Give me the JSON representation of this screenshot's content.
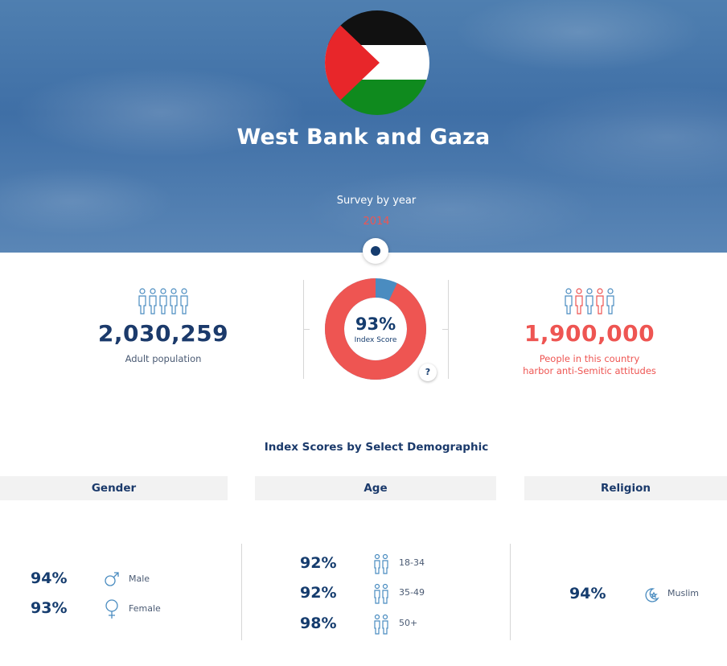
{
  "hero": {
    "country": "West Bank and Gaza",
    "survey_label": "Survey by year",
    "selected_year": "2014"
  },
  "stats": {
    "adult_population": {
      "value": "2,030,259",
      "label": "Adult population"
    },
    "index": {
      "value": "93%",
      "label": "Index Score",
      "fraction": 0.93,
      "help": "?"
    },
    "antisemitic": {
      "value": "1,900,000",
      "label_line1": "People in this country",
      "label_line2": "harbor anti-Semitic attitudes"
    }
  },
  "colors": {
    "navy": "#153c6e",
    "red": "#ee5552",
    "blue_segment": "#4a8cc0",
    "flag_black": "#111111",
    "flag_white": "#ffffff",
    "flag_green": "#0f8a1e",
    "flag_red": "#e8262a"
  },
  "demographics": {
    "heading": "Index Scores by Select Demographic",
    "gender": {
      "title": "Gender",
      "rows": [
        {
          "pct": "94%",
          "label": "Male",
          "icon": "male-icon"
        },
        {
          "pct": "93%",
          "label": "Female",
          "icon": "female-icon"
        }
      ]
    },
    "age": {
      "title": "Age",
      "rows": [
        {
          "pct": "92%",
          "label": "18-34",
          "icon": "age-young-icon"
        },
        {
          "pct": "92%",
          "label": "35-49",
          "icon": "age-middle-icon"
        },
        {
          "pct": "98%",
          "label": "50+",
          "icon": "age-older-icon"
        }
      ]
    },
    "religion": {
      "title": "Religion",
      "rows": [
        {
          "pct": "94%",
          "label": "Muslim",
          "icon": "crescent-star-icon"
        }
      ]
    }
  }
}
